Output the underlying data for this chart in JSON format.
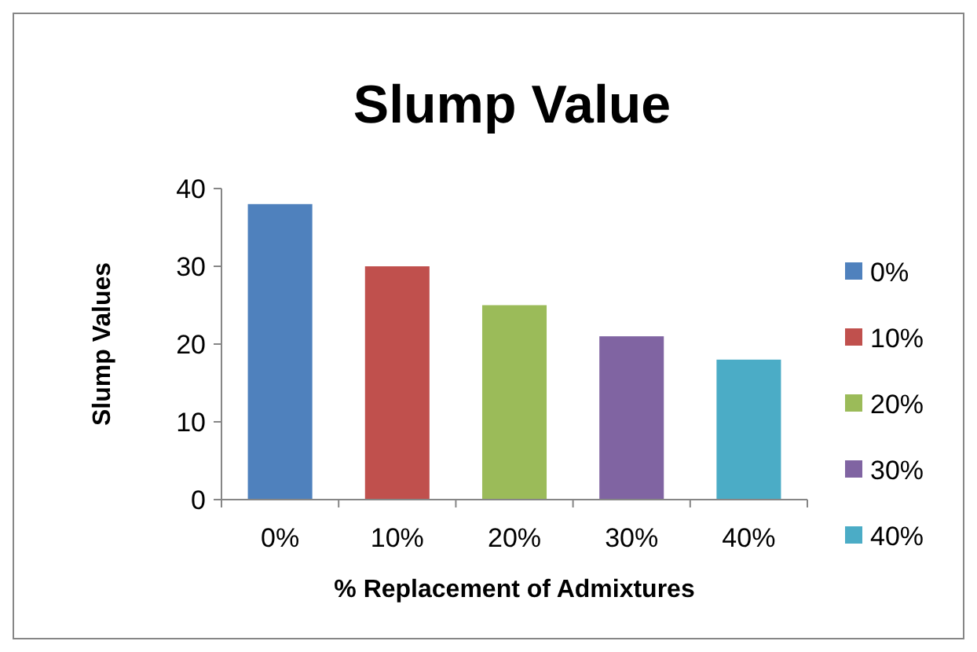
{
  "chart_data": {
    "type": "bar",
    "title": "Slump Value",
    "xlabel": "% Replacement of Admixtures",
    "ylabel": "Slump Values",
    "categories": [
      "0%",
      "10%",
      "20%",
      "30%",
      "40%"
    ],
    "series": [
      {
        "name": "0%",
        "color": "#4f81bd",
        "values": [
          38,
          null,
          null,
          null,
          null
        ]
      },
      {
        "name": "10%",
        "color": "#c0504d",
        "values": [
          null,
          30,
          null,
          null,
          null
        ]
      },
      {
        "name": "20%",
        "color": "#9bbb59",
        "values": [
          null,
          null,
          25,
          null,
          null
        ]
      },
      {
        "name": "30%",
        "color": "#8064a2",
        "values": [
          null,
          null,
          null,
          21,
          null
        ]
      },
      {
        "name": "40%",
        "color": "#4bacc6",
        "values": [
          null,
          null,
          null,
          null,
          18
        ]
      }
    ],
    "ylim": [
      0,
      40
    ],
    "yticks": [
      0,
      10,
      20,
      30,
      40
    ],
    "grid": false,
    "legend": "right"
  }
}
